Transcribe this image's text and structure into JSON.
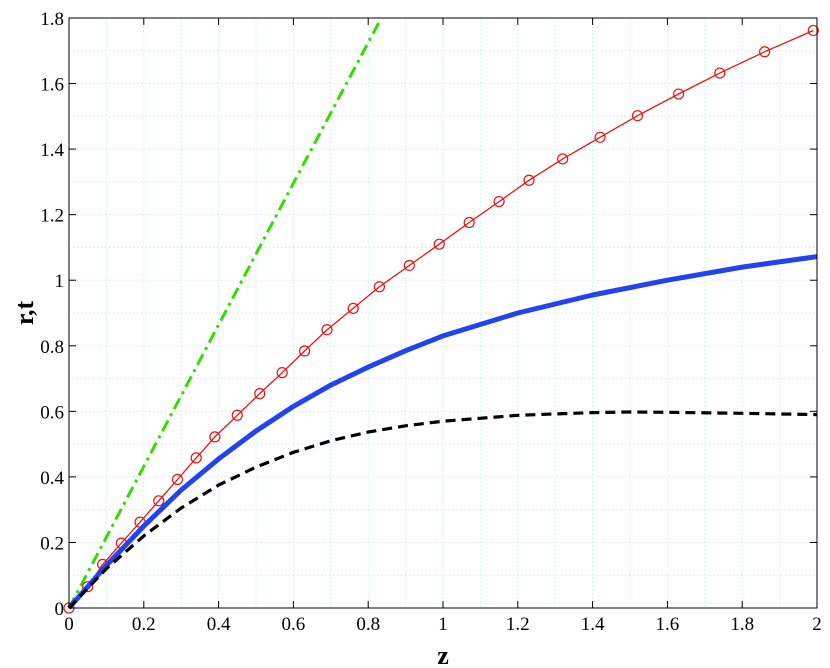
{
  "chart_data": {
    "type": "line",
    "title": "",
    "xlabel": "z",
    "ylabel": "r,t",
    "xlim": [
      0,
      2
    ],
    "ylim": [
      0,
      1.8
    ],
    "grid": "dotted",
    "legend": "none",
    "x_ticks": [
      "0",
      "0.2",
      "0.4",
      "0.6",
      "0.8",
      "1",
      "1.2",
      "1.4",
      "1.6",
      "1.8",
      "2"
    ],
    "y_ticks": [
      "0",
      "0.2",
      "0.4",
      "0.6",
      "0.8",
      "1",
      "1.2",
      "1.4",
      "1.6",
      "1.8"
    ],
    "series": [
      {
        "style": "dash-dot",
        "color": "#33dd00",
        "x": [
          0,
          0.2,
          0.4,
          0.6,
          0.835
        ],
        "y": [
          0,
          0.432,
          0.864,
          1.296,
          1.8
        ]
      },
      {
        "style": "solid-circle-markers",
        "color": "#ee1111",
        "x": [
          0,
          0.05,
          0.09,
          0.14,
          0.19,
          0.24,
          0.29,
          0.34,
          0.39,
          0.45,
          0.51,
          0.57,
          0.63,
          0.69,
          0.76,
          0.83,
          0.91,
          0.99,
          1.07,
          1.15,
          1.23,
          1.32,
          1.42,
          1.52,
          1.63,
          1.74,
          1.86,
          1.99
        ],
        "y": [
          0,
          0.065,
          0.133,
          0.198,
          0.262,
          0.327,
          0.392,
          0.458,
          0.522,
          0.588,
          0.654,
          0.718,
          0.784,
          0.849,
          0.914,
          0.98,
          1.045,
          1.11,
          1.176,
          1.24,
          1.305,
          1.37,
          1.436,
          1.502,
          1.568,
          1.632,
          1.697,
          1.762
        ]
      },
      {
        "style": "solid-thick",
        "color": "#2244ee",
        "x": [
          0,
          0.1,
          0.2,
          0.3,
          0.4,
          0.5,
          0.6,
          0.7,
          0.8,
          0.9,
          1.0,
          1.2,
          1.4,
          1.6,
          1.8,
          2.0
        ],
        "y": [
          0,
          0.13,
          0.25,
          0.36,
          0.455,
          0.54,
          0.615,
          0.68,
          0.735,
          0.785,
          0.83,
          0.9,
          0.955,
          1.0,
          1.04,
          1.072
        ]
      },
      {
        "style": "dashed",
        "color": "#000000",
        "x": [
          0,
          0.1,
          0.2,
          0.3,
          0.4,
          0.5,
          0.6,
          0.7,
          0.8,
          0.9,
          1.0,
          1.2,
          1.4,
          1.5,
          1.6,
          1.8,
          2.0
        ],
        "y": [
          0,
          0.12,
          0.22,
          0.305,
          0.375,
          0.43,
          0.475,
          0.51,
          0.537,
          0.556,
          0.57,
          0.588,
          0.596,
          0.598,
          0.597,
          0.594,
          0.59
        ]
      }
    ]
  }
}
